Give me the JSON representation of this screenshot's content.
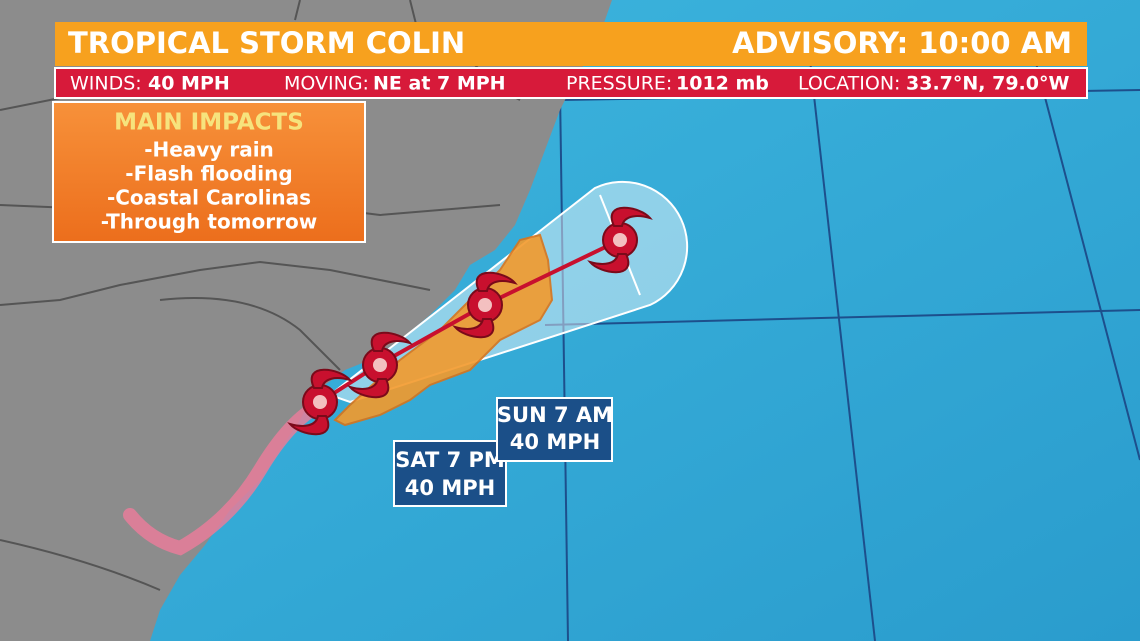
{
  "header": {
    "title": "TROPICAL STORM COLIN",
    "advisory": "ADVISORY: 10:00 AM"
  },
  "stats": [
    {
      "label": "WINDS:",
      "value": "40 MPH"
    },
    {
      "label": "MOVING:",
      "value": "NE at 7 MPH"
    },
    {
      "label": "PRESSURE:",
      "value": "1012 mb"
    },
    {
      "label": "LOCATION:",
      "value": "33.7°N, 79.0°W"
    }
  ],
  "impacts": {
    "title": "MAIN IMPACTS",
    "items": [
      "-Heavy rain",
      "-Flash flooding",
      "-Coastal Carolinas",
      "-Through tomorrow"
    ]
  },
  "forecast_labels": [
    {
      "time": "SAT 7 PM",
      "wind": "40 MPH"
    },
    {
      "time": "SUN 7 AM",
      "wind": "40 MPH"
    }
  ]
}
